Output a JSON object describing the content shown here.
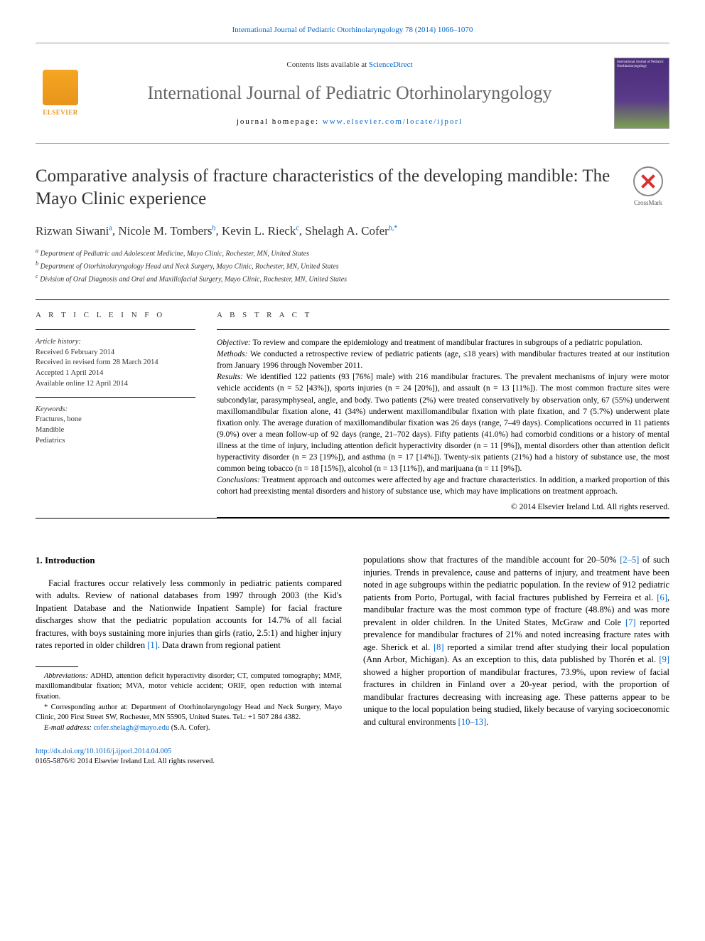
{
  "header": {
    "citation": "International Journal of Pediatric Otorhinolaryngology 78 (2014) 1066–1070",
    "contents_prefix": "Contents lists available at ",
    "contents_link": "ScienceDirect",
    "journal_name": "International Journal of Pediatric Otorhinolaryngology",
    "homepage_prefix": "journal homepage: ",
    "homepage_url": "www.elsevier.com/locate/ijporl",
    "elsevier_label": "ELSEVIER",
    "crossmark_label": "CrossMark",
    "cover_text": "International Journal of Pediatric Otorhinolaryngology"
  },
  "article": {
    "title": "Comparative analysis of fracture characteristics of the developing mandible: The Mayo Clinic experience",
    "authors_html": "Rizwan Siwani|a|, Nicole M. Tombers|b|, Kevin L. Rieck|c|, Shelagh A. Cofer|b,*|",
    "authors": [
      {
        "name": "Rizwan Siwani",
        "sup": "a"
      },
      {
        "name": "Nicole M. Tombers",
        "sup": "b"
      },
      {
        "name": "Kevin L. Rieck",
        "sup": "c"
      },
      {
        "name": "Shelagh A. Cofer",
        "sup": "b,*"
      }
    ],
    "affiliations": {
      "a": "Department of Pediatric and Adolescent Medicine, Mayo Clinic, Rochester, MN, United States",
      "b": "Department of Otorhinolaryngology Head and Neck Surgery, Mayo Clinic, Rochester, MN, United States",
      "c": "Division of Oral Diagnosis and Oral and Maxillofacial Surgery, Mayo Clinic, Rochester, MN, United States"
    }
  },
  "article_info": {
    "label": "A R T I C L E  I N F O",
    "history_label": "Article history:",
    "history": [
      "Received 6 February 2014",
      "Received in revised form 28 March 2014",
      "Accepted 1 April 2014",
      "Available online 12 April 2014"
    ],
    "keywords_label": "Keywords:",
    "keywords": [
      "Fractures, bone",
      "Mandible",
      "Pediatrics"
    ]
  },
  "abstract": {
    "label": "A B S T R A C T",
    "objective_lead": "Objective:",
    "objective": " To review and compare the epidemiology and treatment of mandibular fractures in subgroups of a pediatric population.",
    "methods_lead": "Methods:",
    "methods": " We conducted a retrospective review of pediatric patients (age, ≤18 years) with mandibular fractures treated at our institution from January 1996 through November 2011.",
    "results_lead": "Results:",
    "results": " We identified 122 patients (93 [76%] male) with 216 mandibular fractures. The prevalent mechanisms of injury were motor vehicle accidents (n = 52 [43%]), sports injuries (n = 24 [20%]), and assault (n = 13 [11%]). The most common fracture sites were subcondylar, parasymphyseal, angle, and body. Two patients (2%) were treated conservatively by observation only, 67 (55%) underwent maxillomandibular fixation alone, 41 (34%) underwent maxillomandibular fixation with plate fixation, and 7 (5.7%) underwent plate fixation only. The average duration of maxillomandibular fixation was 26 days (range, 7–49 days). Complications occurred in 11 patients (9.0%) over a mean follow-up of 92 days (range, 21–702 days). Fifty patients (41.0%) had comorbid conditions or a history of mental illness at the time of injury, including attention deficit hyperactivity disorder (n = 11 [9%]), mental disorders other than attention deficit hyperactivity disorder (n = 23 [19%]), and asthma (n = 17 [14%]). Twenty-six patients (21%) had a history of substance use, the most common being tobacco (n = 18 [15%]), alcohol (n = 13 [11%]), and marijuana (n = 11 [9%]).",
    "conclusions_lead": "Conclusions:",
    "conclusions": " Treatment approach and outcomes were affected by age and fracture characteristics. In addition, a marked proportion of this cohort had preexisting mental disorders and history of substance use, which may have implications on treatment approach.",
    "copyright": "© 2014 Elsevier Ireland Ltd. All rights reserved."
  },
  "body": {
    "section_number": "1.",
    "section_title": "Introduction",
    "col1_p1": "Facial fractures occur relatively less commonly in pediatric patients compared with adults. Review of national databases from 1997 through 2003 (the Kid's Inpatient Database and the Nationwide Inpatient Sample) for facial fracture discharges show that the pediatric population accounts for 14.7% of all facial fractures, with boys sustaining more injuries than girls (ratio, 2.5:1) and higher injury rates reported in older children ",
    "ref1": "[1]",
    "col1_p1_tail": ". Data drawn from regional patient",
    "col2_p1_a": "populations show that fractures of the mandible account for 20–50% ",
    "ref2_5": "[2–5]",
    "col2_p1_b": " of such injuries. Trends in prevalence, cause and patterns of injury, and treatment have been noted in age subgroups within the pediatric population. In the review of 912 pediatric patients from Porto, Portugal, with facial fractures published by Ferreira et al. ",
    "ref6": "[6]",
    "col2_p1_c": ", mandibular fracture was the most common type of fracture (48.8%) and was more prevalent in older children. In the United States, McGraw and Cole ",
    "ref7": "[7]",
    "col2_p1_d": " reported prevalence for mandibular fractures of 21% and noted increasing fracture rates with age. Sherick et al. ",
    "ref8": "[8]",
    "col2_p1_e": " reported a similar trend after studying their local population (Ann Arbor, Michigan). As an exception to this, data published by Thorén et al. ",
    "ref9": "[9]",
    "col2_p1_f": " showed a higher proportion of mandibular fractures, 73.9%, upon review of facial fractures in children in Finland over a 20-year period, with the proportion of mandibular fractures decreasing with increasing age. These patterns appear to be unique to the local population being studied, likely because of varying socioeconomic and cultural environments ",
    "ref10_13": "[10–13]",
    "col2_p1_g": "."
  },
  "footnotes": {
    "abbrev_lead": "Abbreviations:",
    "abbrev": " ADHD, attention deficit hyperactivity disorder; CT, computed tomography; MMF, maxillomandibular fixation; MVA, motor vehicle accident; ORIF, open reduction with internal fixation.",
    "corresp": "* Corresponding author at: Department of Otorhinolaryngology Head and Neck Surgery, Mayo Clinic, 200 First Street SW, Rochester, MN 55905, United States. Tel.: +1 507 284 4382.",
    "email_lead": "E-mail address:",
    "email": "cofer.shelagh@mayo.edu",
    "email_tail": " (S.A. Cofer).",
    "doi": "http://dx.doi.org/10.1016/j.ijporl.2014.04.005",
    "issn_copyright": "0165-5876/© 2014 Elsevier Ireland Ltd. All rights reserved."
  },
  "colors": {
    "link": "#0066cc",
    "elsevier_orange": "#e8941a",
    "crossmark_red": "#d93030",
    "journal_cover_top": "#4a2d7a",
    "journal_cover_bottom": "#7aa050"
  }
}
